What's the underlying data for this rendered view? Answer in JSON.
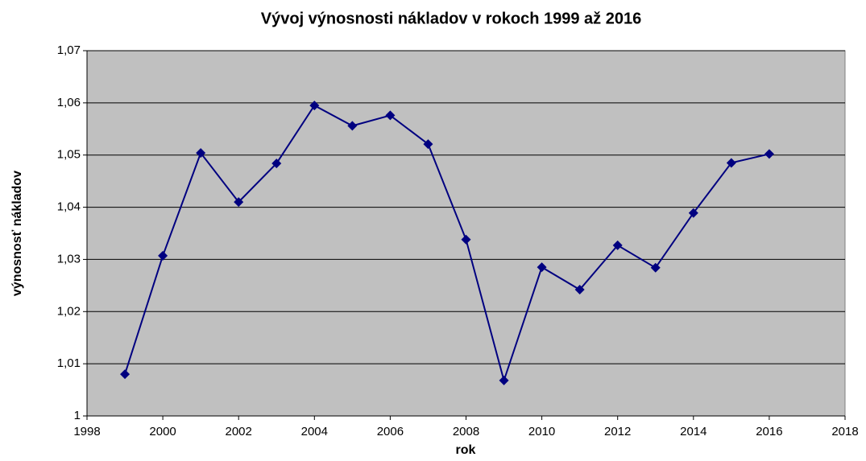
{
  "chart_data": {
    "type": "line",
    "title": "Vývoj výnosnosti nákladov  v rokoch 1999 až 2016",
    "x_label": "rok",
    "y_label": "výnosnosť nákladov",
    "x": [
      1999,
      2000,
      2001,
      2002,
      2003,
      2004,
      2005,
      2006,
      2007,
      2008,
      2009,
      2010,
      2011,
      2012,
      2013,
      2014,
      2015,
      2016
    ],
    "values": [
      1.008,
      1.0307,
      1.0504,
      1.041,
      1.0484,
      1.0595,
      1.0556,
      1.0576,
      1.0521,
      1.0338,
      1.0068,
      1.0285,
      1.0242,
      1.0327,
      1.0284,
      1.0389,
      1.0485,
      1.0502
    ],
    "color": "#000080",
    "xlim": [
      1998,
      2018
    ],
    "xticks": [
      1998,
      2000,
      2002,
      2004,
      2006,
      2008,
      2010,
      2012,
      2014,
      2016,
      2018
    ],
    "ylim": [
      1,
      1.07
    ],
    "yticks": [
      1,
      {
        "value": 1.01,
        "label": "1,01"
      },
      {
        "value": 1.02,
        "label": "1,02"
      },
      {
        "value": 1.03,
        "label": "1,03"
      },
      {
        "value": 1.04,
        "label": "1,04"
      },
      {
        "value": 1.05,
        "label": "1,05"
      },
      {
        "value": 1.06,
        "label": "1,06"
      },
      {
        "value": 1.07,
        "label": "1,07"
      }
    ],
    "grid": true
  }
}
